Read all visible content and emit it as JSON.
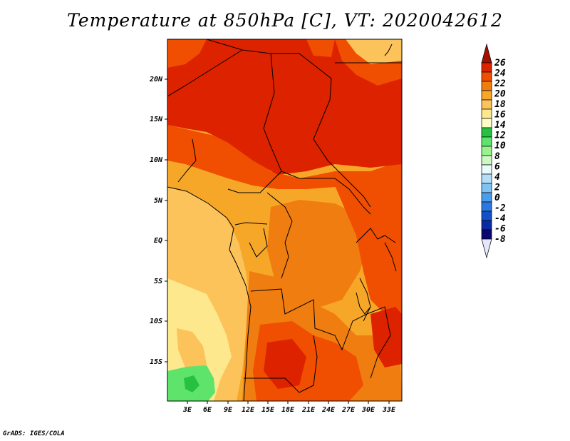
{
  "title": "Temperature at 850hPa [C], VT: 2020042612",
  "credit": "GrADS: IGES/COLA",
  "map": {
    "latitude_labels": [
      "20N",
      "15N",
      "10N",
      "5N",
      "EQ",
      "5S",
      "10S",
      "15S"
    ],
    "longitude_labels": [
      "3E",
      "6E",
      "9E",
      "12E",
      "15E",
      "18E",
      "21E",
      "24E",
      "27E",
      "30E",
      "33E"
    ]
  },
  "colorbar": {
    "levels": [
      "26",
      "24",
      "22",
      "20",
      "18",
      "16",
      "14",
      "12",
      "10",
      "8",
      "6",
      "4",
      "2",
      "0",
      "-2",
      "-4",
      "-6",
      "-8"
    ],
    "colors": [
      "#a50f00",
      "#dd2200",
      "#f04e00",
      "#f07d0f",
      "#f7a728",
      "#fbc35a",
      "#fde88e",
      "#fefdc4",
      "#27c142",
      "#5ee36b",
      "#98f28e",
      "#cbf8c3",
      "#e9fcfc",
      "#b4def8",
      "#7ec3f2",
      "#4a9ee9",
      "#2b79e0",
      "#1350c8",
      "#0a2aa3",
      "#0a0870",
      "#e6e6fa"
    ]
  }
}
